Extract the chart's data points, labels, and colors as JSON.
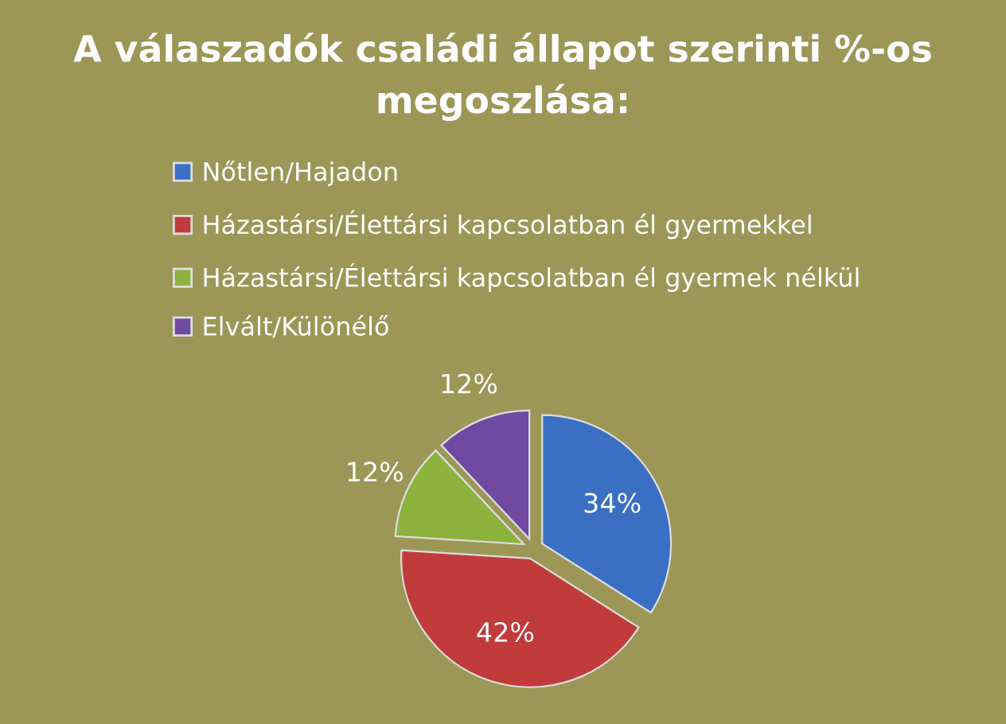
{
  "chart_data": {
    "type": "pie",
    "title": "A válaszadók családi állapot szerinti %-os megoszlása:",
    "categories": [
      "Nőtlen/Hajadon",
      "Házastársi/Élettársi kapcsolatban él gyermekkel",
      "Házastársi/Élettársi kapcsolatban él gyermek nélkül",
      "Elvált/Különélő"
    ],
    "values": [
      34,
      42,
      12,
      12
    ],
    "value_labels": [
      "34%",
      "42%",
      "12%",
      "12%"
    ],
    "colors": [
      "#3a6fc4",
      "#c23b3b",
      "#8db33f",
      "#6f4aa0"
    ],
    "legend": "top left"
  }
}
